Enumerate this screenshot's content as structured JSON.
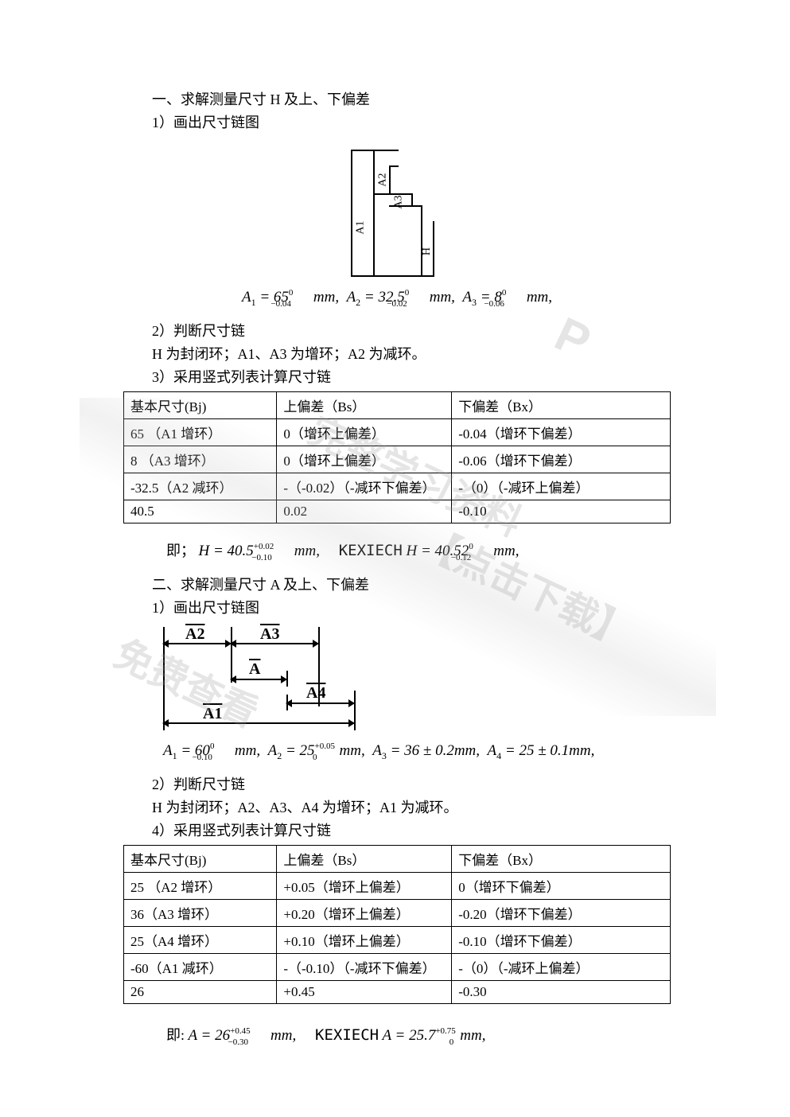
{
  "section1": {
    "title": "一、求解测量尺寸 H 及上、下偏差",
    "step1": "1）画出尺寸链图",
    "diag_labels": {
      "A1": "A1",
      "A2": "A2",
      "A3": "A3",
      "H": "H"
    },
    "equation1_html": "<i>A</i><span class='sub'>1</span> = 65<span class='supr'>0</span><span class='subr'>−0.04</span><i>mm</i>, &nbsp;<i>A</i><span class='sub'>2</span> = 32.5<span class='supr'>0</span><span class='subr'>−0.02</span><i>mm</i>, &nbsp;<i>A</i><span class='sub'>3</span> = 8<span class='supr'>0</span><span class='subr'>−0.06</span><i>mm</i>,",
    "step2": "2）判断尺寸链",
    "judge": "H 为封闭环；A1、A3 为增环；A2 为减环。",
    "step3": "3）采用竖式列表计算尺寸链",
    "table": {
      "headers": [
        "基本尺寸(Bj)",
        "上偏差（Bs）",
        "下偏差（Bx）"
      ],
      "rows": [
        [
          "65 （A1 增环）",
          "0（增环上偏差）",
          "-0.04（增环下偏差）"
        ],
        [
          "8 （A3 增环）",
          "0（增环上偏差）",
          "-0.06（增环下偏差）"
        ],
        [
          "-32.5（A2 减环）",
          "-（-0.02）（-减环下偏差）",
          "-（0）（-减环上偏差）"
        ],
        [
          "40.5",
          "0.02",
          "-0.10"
        ]
      ]
    },
    "result_prefix": "即；",
    "result_html": "H = 40.5<span class='supr'>+0.02</span><span class='subr'>−0.10</span><i>mm</i>, &nbsp;&nbsp;&nbsp;&nbsp;<span class='rm' style='font-family:monospace'>KEXIECH</span> H = 40.52<span class='supr'>0</span><span class='subr'>−0.12</span><i>mm</i>,"
  },
  "section2": {
    "title": "二、求解测量尺寸 A 及上、下偏差",
    "step1": "1）画出尺寸链图",
    "diag_labels": {
      "A1": "A1",
      "A2": "A2",
      "A3": "A3",
      "A4": "A4",
      "A": "A"
    },
    "equation1_html": "A<span class='sub'>1</span> = 60<span class='supr'>0</span><span class='subr'>−0.10</span><i>mm</i>, &nbsp;A<span class='sub'>2</span> = 25<span class='supr'>+0.05</span><span class='subr'>0</span><i>mm</i>, &nbsp;A<span class='sub'>3</span> = 36 ± 0.2<i>mm</i>, &nbsp;A<span class='sub'>4</span> = 25 ± 0.1<i>mm</i>,",
    "step2": "2）判断尺寸链",
    "judge": "H 为封闭环；A2、A3、A4 为增环；A1 为减环。",
    "step3": "4）采用竖式列表计算尺寸链",
    "table": {
      "headers": [
        "基本尺寸(Bj)",
        "上偏差（Bs）",
        "下偏差（Bx）"
      ],
      "rows": [
        [
          "25 （A2 增环）",
          "+0.05（增环上偏差）",
          "0（增环下偏差）"
        ],
        [
          "36（A3 增环）",
          "+0.20（增环上偏差）",
          "-0.20（增环下偏差）"
        ],
        [
          "25（A4 增环）",
          "+0.10（增环上偏差）",
          "-0.10（增环下偏差）"
        ],
        [
          "-60（A1 减环）",
          "-（-0.10）（-减环下偏差）",
          "-（0）（-减环上偏差）"
        ],
        [
          "26",
          "+0.45",
          "-0.30"
        ]
      ]
    },
    "result_prefix": "即:",
    "result_html": "A = 26<span class='supr'>+0.45</span><span class='subr'>−0.30</span><i>mm</i>, &nbsp;&nbsp;&nbsp;&nbsp;<span class='rm' style='font-family:monospace'>KEXIECH</span> A = 25.7<span class='supr'>+0.75</span><span class='subr3'>0</span><i>mm</i>,"
  },
  "watermark": {
    "wm1": "完整学习资料",
    "wm2": "【点击下载】",
    "wm3": "免费查看",
    "wm4": "P"
  }
}
